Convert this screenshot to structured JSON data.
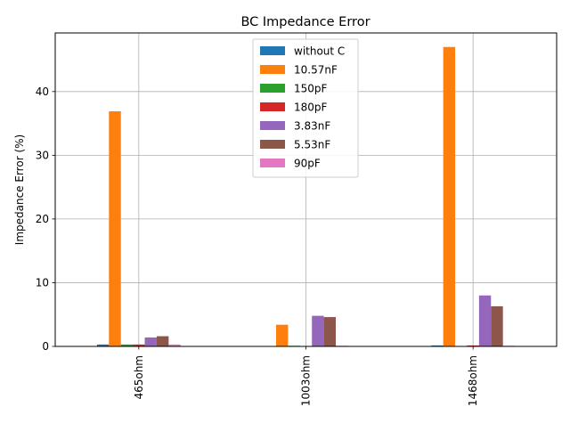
{
  "chart_data": {
    "type": "bar",
    "title": "BC Impedance Error",
    "xlabel": "",
    "ylabel": "Impedance Error (%)",
    "categories": [
      "465ohm",
      "1003ohm",
      "1468ohm"
    ],
    "ylim": [
      0,
      49.2
    ],
    "yticks": [
      0,
      10,
      20,
      30,
      40
    ],
    "grid": true,
    "legend_position": "upper center",
    "series": [
      {
        "name": "without C",
        "color": "#1f77b4",
        "values": [
          0.3,
          0.05,
          0.15
        ]
      },
      {
        "name": "10.57nF",
        "color": "#ff7f0e",
        "values": [
          36.9,
          3.4,
          47.0
        ]
      },
      {
        "name": "150pF",
        "color": "#2ca02c",
        "values": [
          0.3,
          0.1,
          0.05
        ]
      },
      {
        "name": "180pF",
        "color": "#d62728",
        "values": [
          0.3,
          0.05,
          0.15
        ]
      },
      {
        "name": "3.83nF",
        "color": "#9467bd",
        "values": [
          1.4,
          4.8,
          8.0
        ]
      },
      {
        "name": "5.53nF",
        "color": "#8c564b",
        "values": [
          1.6,
          4.6,
          6.3
        ]
      },
      {
        "name": "90pF",
        "color": "#e377c2",
        "values": [
          0.3,
          0.1,
          0.1
        ]
      }
    ]
  }
}
